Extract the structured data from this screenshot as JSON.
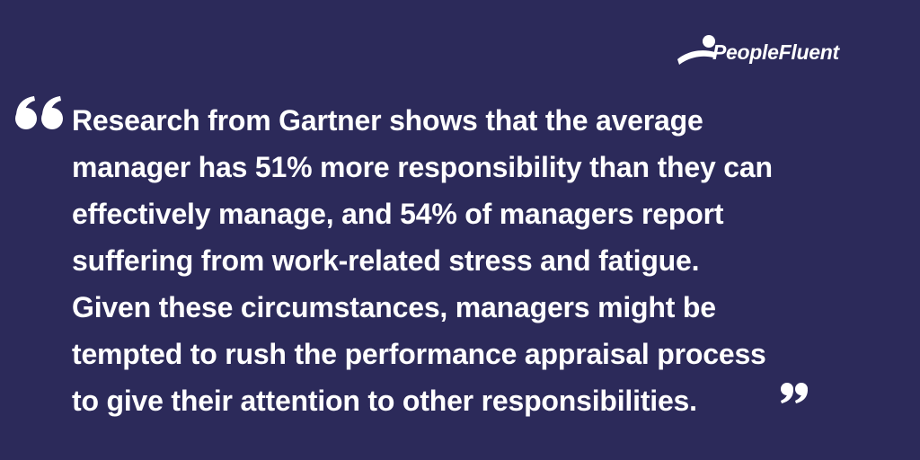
{
  "logo": {
    "text": "PeopleFluent"
  },
  "quote": {
    "lines": [
      "Research from Gartner shows that the average",
      "manager has 51% more responsibility than they can",
      "effectively manage, and 54% of managers report",
      "suffering from work-related stress and fatigue.",
      "Given these circumstances, managers might be",
      "tempted to rush the performance appraisal process",
      "to give their attention to other responsibilities."
    ]
  }
}
